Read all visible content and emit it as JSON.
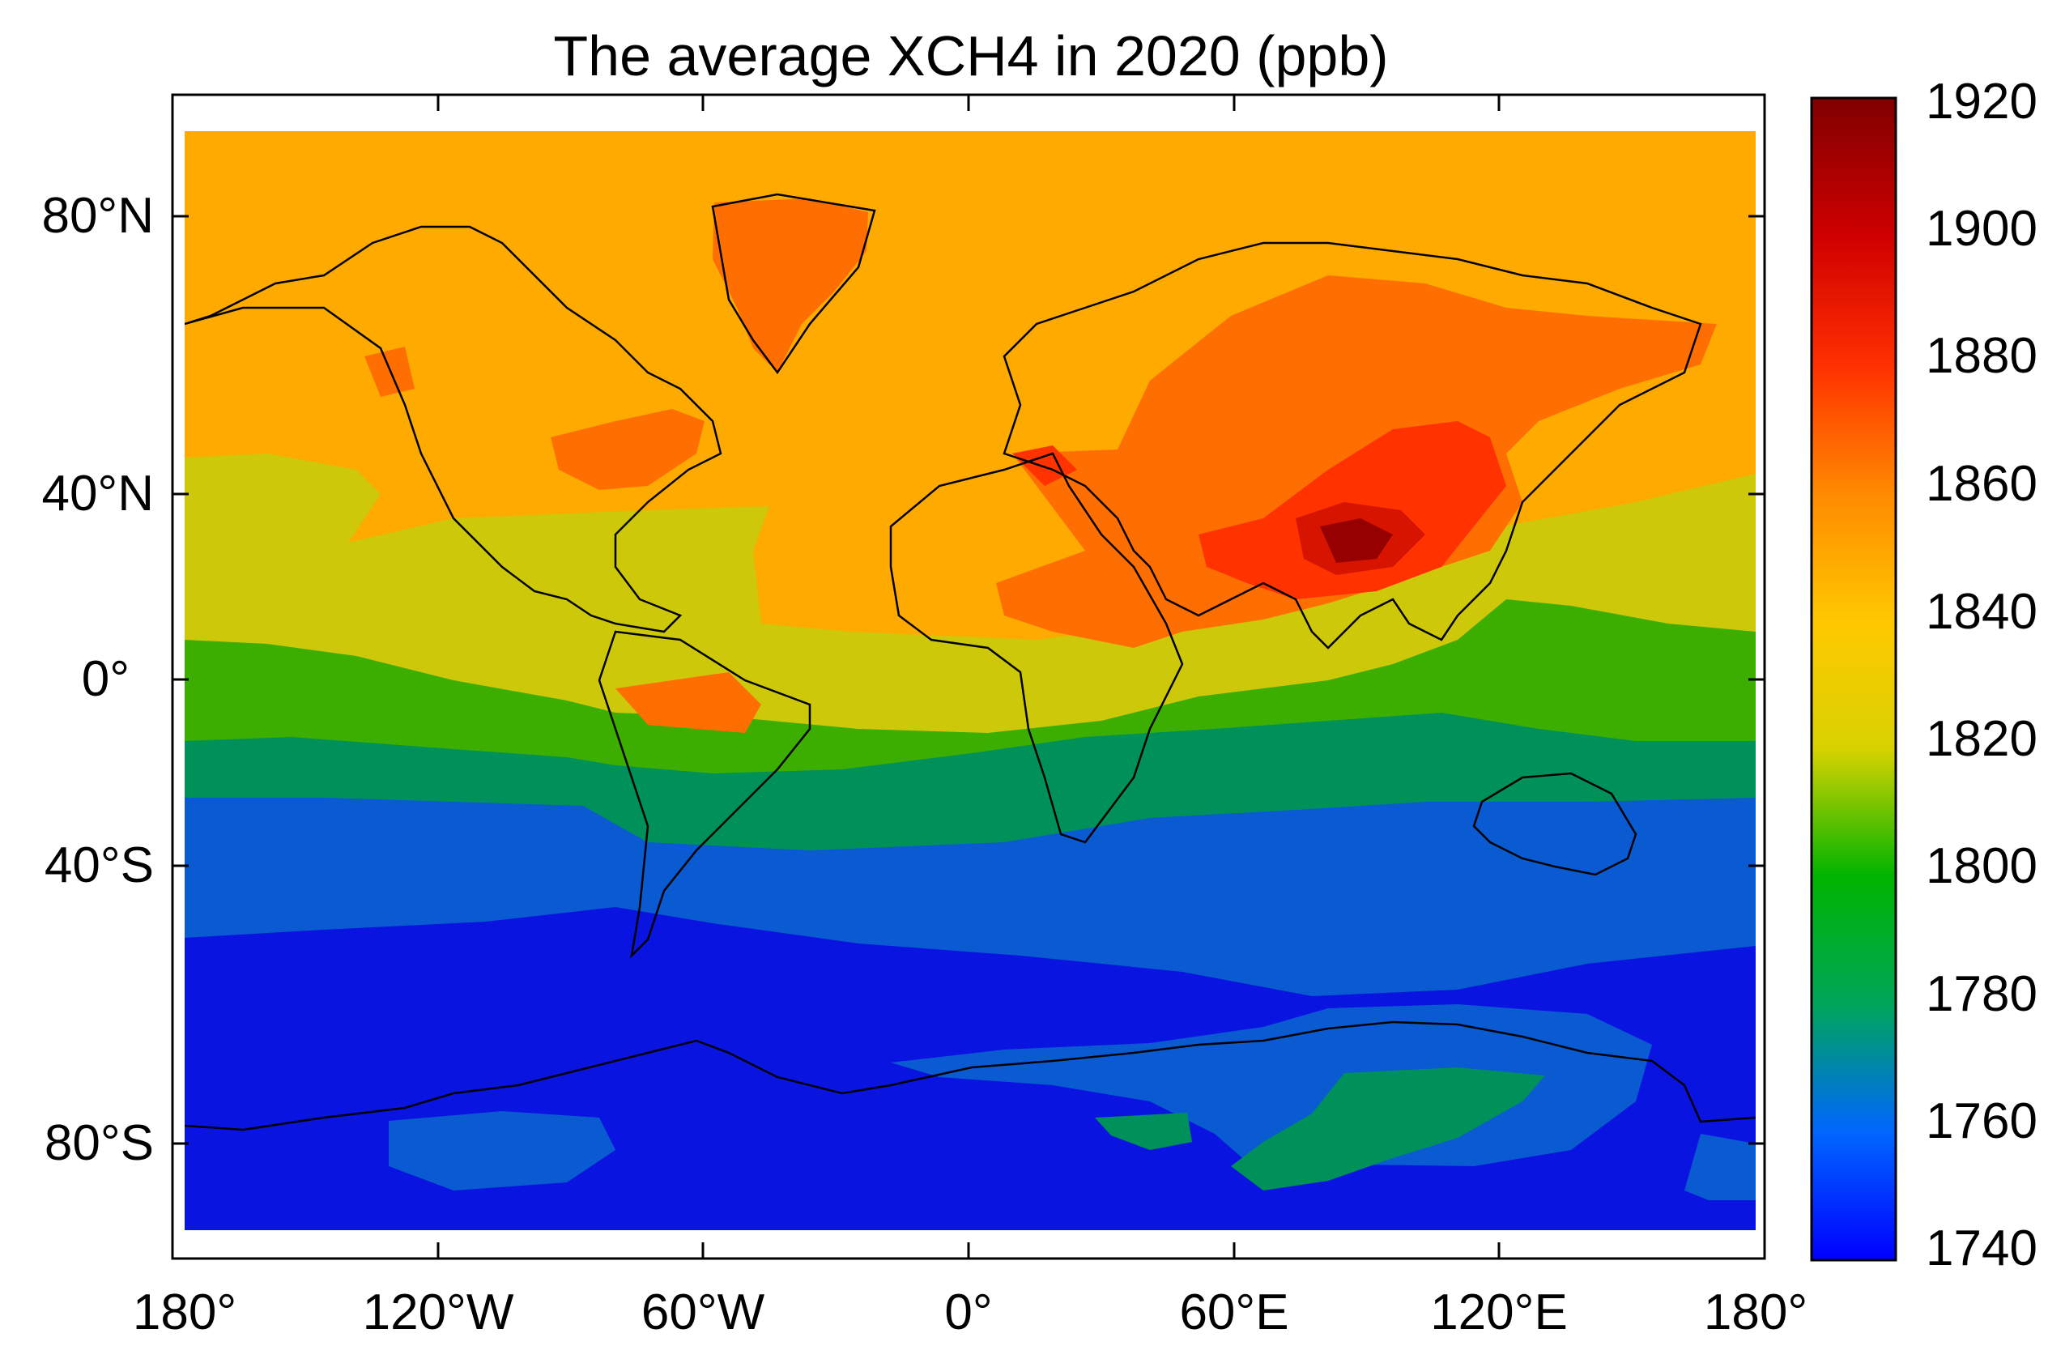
{
  "figure": {
    "title": "The average XCH4 in 2020 (ppb)"
  },
  "axes": {
    "latitude_ticks": [
      {
        "value": 80,
        "label": "80°N"
      },
      {
        "value": 40,
        "label": "40°N"
      },
      {
        "value": 0,
        "label": "0°"
      },
      {
        "value": -40,
        "label": "40°S"
      },
      {
        "value": -80,
        "label": "80°S"
      }
    ],
    "longitude_ticks": [
      {
        "value": -180,
        "label": "180°"
      },
      {
        "value": -120,
        "label": "120°W"
      },
      {
        "value": -60,
        "label": "60°W"
      },
      {
        "value": 0,
        "label": "0°"
      },
      {
        "value": 60,
        "label": "60°E"
      },
      {
        "value": 120,
        "label": "120°E"
      },
      {
        "value": 180,
        "label": "180°"
      }
    ],
    "lon_range": [
      -180,
      180
    ],
    "lat_range": [
      -95,
      95
    ]
  },
  "colorbar": {
    "min": 1740,
    "max": 1920,
    "ticks": [
      1920,
      1900,
      1880,
      1860,
      1840,
      1820,
      1800,
      1780,
      1760,
      1740
    ],
    "colors": [
      "#0000ff",
      "#0066ff",
      "#00a65a",
      "#00b400",
      "#d8d200",
      "#ffb400",
      "#ff7800",
      "#ff1e00",
      "#a00000",
      "#8b0000"
    ]
  },
  "map": {
    "variable": "XCH4",
    "units": "ppb",
    "year": "2020",
    "contour_fill_colors": {
      "c1740": "#0a14e0",
      "c1760": "#0a5ad2",
      "c1780": "#00915a",
      "c1800": "#3cae00",
      "c1820": "#cdc80a",
      "c1840": "#ffaa00",
      "c1860": "#ff6e00",
      "c1880": "#ff3200",
      "c1900": "#d71400",
      "c1920": "#960000"
    }
  }
}
